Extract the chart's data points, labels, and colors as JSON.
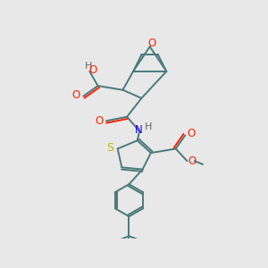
{
  "background_color": "#e8e8e8",
  "bond_color": "#4a7a7a",
  "o_color": "#ff2200",
  "n_color": "#2200ee",
  "s_color": "#bbbb00",
  "h_color": "#666666",
  "line_width": 1.4,
  "figsize": [
    3.0,
    3.0
  ],
  "dpi": 100,
  "xlim": [
    0,
    10
  ],
  "ylim": [
    0,
    10
  ]
}
